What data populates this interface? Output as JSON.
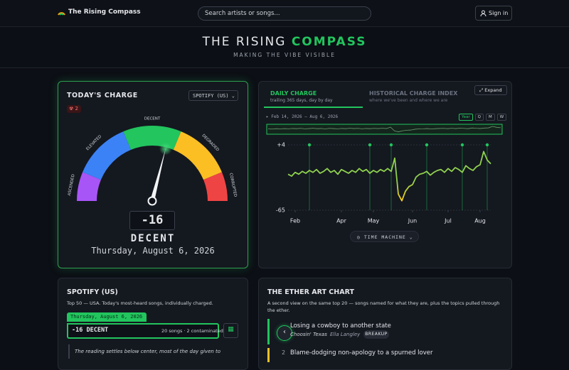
{
  "nav": {
    "brand": "The Rising Compass",
    "search_placeholder": "Search artists or songs...",
    "sign_in": "Sign in"
  },
  "hero": {
    "title_a": "THE RISING",
    "title_b": "COMPASS",
    "tagline": "MAKING THE VIBE VISIBLE"
  },
  "chart_data": [
    {
      "type": "gauge",
      "title": "TODAY'S CHARGE",
      "source": "SPOTIFY (US)",
      "badge": 2,
      "lim": [
        100,
        -100
      ],
      "bands": [
        {
          "label": "ASCENDED",
          "color": "#a855f7",
          "range": [
            100,
            75
          ]
        },
        {
          "label": "ELEVATED",
          "color": "#3b82f6",
          "range": [
            75,
            25
          ]
        },
        {
          "label": "DECENT",
          "color": "#22c55e",
          "range": [
            25,
            -25
          ]
        },
        {
          "label": "DEGRADED",
          "color": "#fbbf24",
          "range": [
            -25,
            -75
          ]
        },
        {
          "label": "CORRUPTED",
          "color": "#ef4444",
          "range": [
            -75,
            -100
          ]
        }
      ],
      "value": -16,
      "reading": "DECENT",
      "date": "Thursday, August 6, 2026"
    },
    {
      "type": "line",
      "tabs": [
        {
          "title": "DAILY CHARGE",
          "subtitle": "trailing 365 days, day by day"
        },
        {
          "title": "HISTORICAL CHARGE INDEX",
          "subtitle": "where we've been and where we are"
        }
      ],
      "expand": "Expand",
      "range_label": "Feb 14, 2026 – Aug 6, 2026",
      "zoom": [
        "Year",
        "Q",
        "M",
        "W"
      ],
      "series": [
        {
          "color": "#8fd14f",
          "values": [
            -27,
            -29,
            -25,
            -27,
            -24,
            -26,
            -23,
            -25,
            -22,
            -26,
            -24,
            -21,
            -25,
            -23,
            -27,
            -22,
            -24,
            -26,
            -23,
            -25,
            -21,
            -24,
            -22,
            -26,
            -23,
            -25,
            -22,
            -24,
            -21,
            -24,
            -10,
            -48,
            -55,
            -45,
            -40,
            -38,
            -30,
            -27,
            -26,
            -24,
            -28,
            -25,
            -23,
            -22,
            -25,
            -21,
            -24,
            -20,
            -22,
            -25,
            -18,
            -21,
            -23,
            -19,
            -17,
            -3,
            -12,
            -16
          ]
        }
      ],
      "xlim": [
        0,
        57
      ],
      "xticks": [
        {
          "value": 2,
          "label": "Feb"
        },
        {
          "value": 15,
          "label": "Apr"
        },
        {
          "value": 24,
          "label": "May"
        },
        {
          "value": 35,
          "label": "Jun"
        },
        {
          "value": 45,
          "label": "Jul"
        },
        {
          "value": 54,
          "label": "Aug"
        }
      ],
      "ylim": [
        -65,
        4
      ],
      "yticks": [
        {
          "value": 4,
          "label": "+4"
        },
        -65
      ],
      "markers": [
        6,
        23,
        29,
        39,
        49,
        56
      ],
      "marker_color": "#22c55e",
      "time_machine": "TIME MACHINE"
    }
  ],
  "spotify_card": {
    "title": "SPOTIFY (US)",
    "subtitle": "Top 50 — USA. Today's most-heard songs, individually charged.",
    "date": "Thursday, August 6, 2026",
    "reading": "-16 DECENT",
    "count": "20 songs · 2 contaminated",
    "summary": "The reading settles below center, most of the day given to"
  },
  "ether_card": {
    "title": "THE ETHER ART CHART",
    "description": "A second view on the same top 20 — songs named for what they are, plus the topics pulled through the ether.",
    "items": [
      {
        "title": "Losing a cowboy to another state",
        "song": "Choosin' Texas",
        "artist": "Ella Langley",
        "tag": "BREAKUP"
      },
      {
        "rank": "2",
        "title": "Blame-dodging non-apology to a spurned lover"
      }
    ]
  }
}
